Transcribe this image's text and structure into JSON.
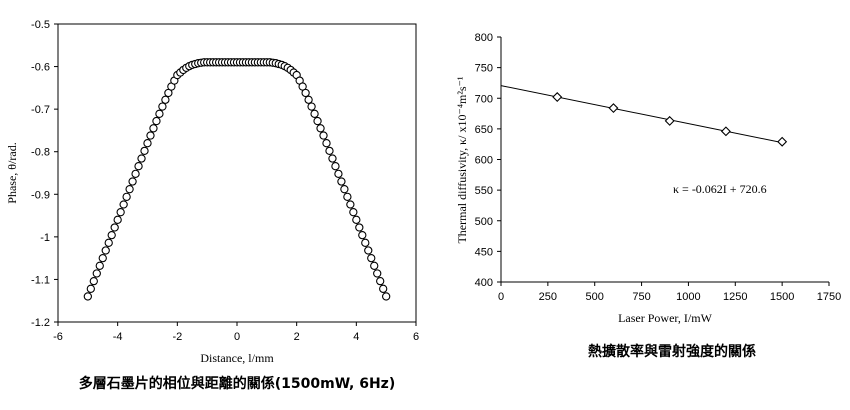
{
  "chart_data": [
    {
      "type": "scatter",
      "title": "",
      "caption": "多層石墨片的相位與距離的關係(1500mW, 6Hz)",
      "xlabel": "Distance, l/mm",
      "ylabel": "Phase, θ/rad.",
      "xlim": [
        -6,
        6
      ],
      "ylim": [
        -1.2,
        -0.5
      ],
      "xticks": [
        -6,
        -4,
        -2,
        0,
        2,
        4,
        6
      ],
      "yticks": [
        -0.5,
        -0.6,
        -0.7,
        -0.8,
        -0.9,
        -1,
        -1.1,
        -1.2
      ],
      "grid": false,
      "marker": "open-circle",
      "series": [
        {
          "x": [
            -5.0,
            -4.9,
            -4.8,
            -4.7,
            -4.6,
            -4.5,
            -4.4,
            -4.3,
            -4.2,
            -4.1,
            -4.0,
            -3.9,
            -3.8,
            -3.7,
            -3.6,
            -3.5,
            -3.4,
            -3.3,
            -3.2,
            -3.1,
            -3.0,
            -2.9,
            -2.8,
            -2.7,
            -2.6,
            -2.5,
            -2.4,
            -2.3,
            -2.2,
            -2.1,
            -2.0,
            -1.9,
            -1.8,
            -1.7,
            -1.6,
            -1.5,
            -1.4,
            -1.3,
            -1.2,
            -1.1,
            -1.0,
            -0.9,
            -0.8,
            -0.7,
            -0.6,
            -0.5,
            -0.4,
            -0.3,
            -0.2,
            -0.1,
            0.0,
            0.1,
            0.2,
            0.3,
            0.4,
            0.5,
            0.6,
            0.7,
            0.8,
            0.9,
            1.0,
            1.1,
            1.2,
            1.3,
            1.4,
            1.5,
            1.6,
            1.7,
            1.8,
            1.9,
            2.0,
            2.1,
            2.2,
            2.3,
            2.4,
            2.5,
            2.6,
            2.7,
            2.8,
            2.9,
            3.0,
            3.1,
            3.2,
            3.3,
            3.4,
            3.5,
            3.6,
            3.7,
            3.8,
            3.9,
            4.0,
            4.1,
            4.2,
            4.3,
            4.4,
            4.5,
            4.6,
            4.7,
            4.8,
            4.9,
            5.0
          ],
          "y": [
            -1.14,
            -1.122,
            -1.104,
            -1.086,
            -1.068,
            -1.05,
            -1.032,
            -1.014,
            -0.996,
            -0.978,
            -0.96,
            -0.942,
            -0.924,
            -0.906,
            -0.888,
            -0.87,
            -0.852,
            -0.834,
            -0.816,
            -0.798,
            -0.78,
            -0.762,
            -0.745,
            -0.728,
            -0.711,
            -0.694,
            -0.678,
            -0.662,
            -0.647,
            -0.633,
            -0.62,
            -0.614,
            -0.608,
            -0.603,
            -0.599,
            -0.596,
            -0.594,
            -0.592,
            -0.591,
            -0.59,
            -0.59,
            -0.59,
            -0.59,
            -0.59,
            -0.59,
            -0.59,
            -0.59,
            -0.59,
            -0.59,
            -0.59,
            -0.59,
            -0.59,
            -0.59,
            -0.59,
            -0.59,
            -0.59,
            -0.59,
            -0.59,
            -0.59,
            -0.59,
            -0.59,
            -0.59,
            -0.591,
            -0.592,
            -0.594,
            -0.596,
            -0.599,
            -0.603,
            -0.608,
            -0.614,
            -0.62,
            -0.633,
            -0.647,
            -0.662,
            -0.678,
            -0.694,
            -0.711,
            -0.728,
            -0.745,
            -0.762,
            -0.78,
            -0.798,
            -0.816,
            -0.834,
            -0.852,
            -0.87,
            -0.888,
            -0.906,
            -0.924,
            -0.942,
            -0.96,
            -0.978,
            -0.996,
            -1.014,
            -1.032,
            -1.05,
            -1.068,
            -1.086,
            -1.104,
            -1.122,
            -1.14
          ]
        }
      ]
    },
    {
      "type": "scatter",
      "title": "",
      "caption": "熱擴散率與雷射強度的關係",
      "xlabel": "Laser Power, I/mW",
      "ylabel": "Thermal diffusivity, κ/ x10⁻⁴m²s⁻¹",
      "xlim": [
        0,
        1750
      ],
      "ylim": [
        400,
        800
      ],
      "xticks": [
        0,
        250,
        500,
        750,
        1000,
        1250,
        1500,
        1750
      ],
      "yticks": [
        400,
        450,
        500,
        550,
        600,
        650,
        700,
        750,
        800
      ],
      "grid": false,
      "marker": "open-diamond",
      "series": [
        {
          "x": [
            300,
            600,
            900,
            1200,
            1500
          ],
          "y": [
            702,
            684,
            663,
            646,
            629
          ]
        }
      ],
      "trendline": {
        "slope": -0.062,
        "intercept": 720.6,
        "x_range": [
          0,
          1500
        ]
      },
      "annotation": "κ = -0.062I + 720.6"
    }
  ]
}
